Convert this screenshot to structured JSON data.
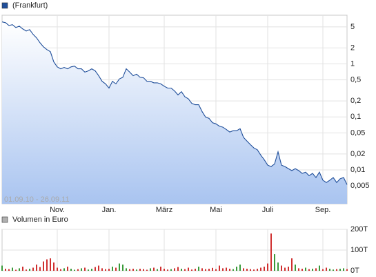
{
  "chart_data": [
    {
      "type": "line",
      "log_scale": true,
      "grid": true,
      "legend": "top-left",
      "annotation": "01.09.10 - 26.09.11",
      "categories": [
        null,
        null,
        null,
        null,
        null,
        null,
        null,
        null,
        null,
        null,
        null,
        null,
        null,
        null,
        null,
        null,
        "Nov.",
        null,
        null,
        null,
        null,
        null,
        null,
        null,
        null,
        null,
        null,
        null,
        null,
        null,
        null,
        "Jan.",
        null,
        null,
        null,
        null,
        null,
        null,
        null,
        null,
        null,
        null,
        null,
        null,
        null,
        null,
        null,
        "März",
        null,
        null,
        null,
        null,
        null,
        null,
        null,
        null,
        null,
        null,
        null,
        null,
        null,
        null,
        "Mai",
        null,
        null,
        null,
        null,
        null,
        null,
        null,
        null,
        null,
        null,
        null,
        null,
        null,
        null,
        "Juli",
        null,
        null,
        null,
        null,
        null,
        null,
        null,
        null,
        null,
        null,
        null,
        null,
        null,
        null,
        null,
        "Sep.",
        null,
        null,
        null,
        null,
        null,
        null,
        null
      ],
      "series": [
        {
          "name": "(Frankfurt)",
          "color": "#1f4e9a",
          "values": [
            6.2,
            6.0,
            5.3,
            5.5,
            4.85,
            5.15,
            4.57,
            4.18,
            4.44,
            3.6,
            3.1,
            2.51,
            2.1,
            1.86,
            1.7,
            1.09,
            0.88,
            0.81,
            0.86,
            0.81,
            0.88,
            0.91,
            0.81,
            0.81,
            0.7,
            0.74,
            0.81,
            0.74,
            0.6,
            0.47,
            0.42,
            0.35,
            0.47,
            0.42,
            0.52,
            0.56,
            0.81,
            0.7,
            0.6,
            0.64,
            0.56,
            0.55,
            0.47,
            0.47,
            0.44,
            0.44,
            0.42,
            0.38,
            0.35,
            0.35,
            0.31,
            0.26,
            0.3,
            0.24,
            0.22,
            0.18,
            0.17,
            0.17,
            0.126,
            0.099,
            0.094,
            0.078,
            0.074,
            0.067,
            0.064,
            0.058,
            0.052,
            0.055,
            0.055,
            0.06,
            0.041,
            0.035,
            0.03,
            0.026,
            0.024,
            0.019,
            0.0156,
            0.0123,
            0.0116,
            0.013,
            0.022,
            0.0123,
            0.0116,
            0.0106,
            0.0097,
            0.0106,
            0.0097,
            0.0086,
            0.0091,
            0.0078,
            0.0086,
            0.0072,
            0.0091,
            0.0064,
            0.0058,
            0.0064,
            0.0072,
            0.0058,
            0.0068,
            0.0072,
            0.0053
          ]
        }
      ],
      "ylim": [
        0.0023,
        8.3
      ],
      "yticks": [
        5,
        2,
        1,
        {
          "value": 0.5,
          "label": "0,5"
        },
        {
          "value": 0.2,
          "label": "0,2"
        },
        {
          "value": 0.1,
          "label": "0,1"
        },
        {
          "value": 0.05,
          "label": "0,05"
        },
        {
          "value": 0.02,
          "label": "0,02"
        },
        {
          "value": 0.01,
          "label": "0,01"
        },
        {
          "value": 0.005,
          "label": "0,005"
        }
      ]
    },
    {
      "type": "bar",
      "grid": true,
      "legend": "top-left",
      "series": [
        {
          "name": "Volumen in Euro",
          "color": "#b0b0b0",
          "up_color": "#3a9a3a",
          "down_color": "#d03030",
          "values": [
            25,
            10,
            8,
            15,
            5,
            12,
            20,
            6,
            10,
            15,
            30,
            18,
            45,
            55,
            60,
            40,
            15,
            8,
            12,
            20,
            10,
            5,
            8,
            12,
            15,
            6,
            10,
            18,
            25,
            12,
            8,
            10,
            20,
            15,
            35,
            30,
            12,
            8,
            10,
            6,
            10,
            8,
            5,
            12,
            15,
            8,
            20,
            10,
            6,
            8,
            12,
            18,
            10,
            8,
            15,
            6,
            10,
            20,
            12,
            8,
            10,
            14,
            8,
            25,
            12,
            15,
            10,
            8,
            20,
            30,
            12,
            10,
            8,
            6,
            10,
            15,
            20,
            35,
            180,
            80,
            40,
            25,
            15,
            20,
            60,
            30,
            12,
            10,
            15,
            8,
            10,
            12,
            25,
            8,
            15,
            10,
            6,
            8,
            10,
            12,
            8
          ]
        }
      ],
      "ylim": [
        0,
        200
      ],
      "yticks": [
        {
          "value": 200,
          "label": "200T"
        },
        {
          "value": 100,
          "label": "100T"
        },
        {
          "value": 0,
          "label": "0T"
        }
      ]
    }
  ]
}
